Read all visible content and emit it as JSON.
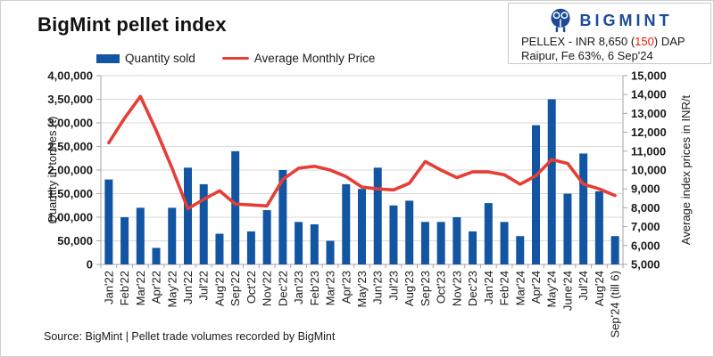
{
  "title": "BigMint pellet index",
  "info_box": {
    "logo_text": "BIGMINT",
    "line1_prefix": "PELLEX - INR 8,650 (",
    "line1_change": "150",
    "line1_suffix": ") DAP",
    "line2": "Raipur, Fe 63%, 6 Sep'24"
  },
  "legend": [
    {
      "label": "Quantity sold",
      "type": "bar"
    },
    {
      "label": "Average Monthly Price",
      "type": "line"
    }
  ],
  "source": "Source: BigMint | Pellet trade volumes recorded by BigMint",
  "colors": {
    "bar": "#1155a3",
    "line": "#e63e36",
    "logo_blue": "#1b4b99",
    "change_red": "#f41807",
    "grid": "#d9d9d9",
    "axis": "#a6a6a6"
  },
  "chart_data": {
    "type": "bar",
    "title": "BigMint pellet index",
    "categories": [
      "Jan'22",
      "Feb'22",
      "Mar'22",
      "Apr'22",
      "May'22",
      "Jun'22",
      "Jul'22",
      "Aug'22",
      "Sep'22",
      "Oct'22",
      "Nov'22",
      "Dec'22",
      "Jan'23",
      "Feb'23",
      "Mar'23",
      "Apr'23",
      "May'23",
      "Jun'23",
      "Jul'23",
      "Aug'23",
      "Sep'23",
      "Oct'23",
      "Nov'23",
      "Dec'23",
      "Jan'24",
      "Feb'24",
      "Mar'24",
      "Apr'24",
      "May'24",
      "June'24",
      "Jul'24",
      "Aug'24",
      "Sep'24 (till 6)"
    ],
    "series": [
      {
        "name": "Quantity sold",
        "type": "bar",
        "axis": "left",
        "values": [
          180000,
          100000,
          120000,
          35000,
          120000,
          205000,
          170000,
          65000,
          240000,
          70000,
          115000,
          200000,
          90000,
          85000,
          50000,
          170000,
          160000,
          205000,
          125000,
          135000,
          90000,
          90000,
          100000,
          70000,
          130000,
          90000,
          60000,
          295000,
          350000,
          150000,
          235000,
          155000,
          60000
        ]
      },
      {
        "name": "Average Monthly Price",
        "type": "line",
        "axis": "right",
        "values": [
          11450,
          12750,
          13900,
          12100,
          10100,
          7950,
          8450,
          8900,
          8200,
          8150,
          8100,
          9500,
          10100,
          10200,
          10000,
          9650,
          9100,
          9000,
          8950,
          9300,
          10450,
          10000,
          9600,
          9900,
          9900,
          9750,
          9250,
          9700,
          10550,
          10350,
          9250,
          9000,
          8650
        ]
      }
    ],
    "left_axis": {
      "label": "Quantity in tonnes (t)",
      "min": 0,
      "max": 400000,
      "step": 50000,
      "tick_labels": [
        "4,00,000",
        "3,50,000",
        "3,00,000",
        "2,50,000",
        "2,00,000",
        "1,50,000",
        "1,00,000",
        "50,000",
        "0"
      ]
    },
    "right_axis": {
      "label": "Average index prices in INR/t",
      "min": 5000,
      "max": 15000,
      "step": 1000,
      "tick_labels": [
        "15,000",
        "14,000",
        "13,000",
        "12,000",
        "11,000",
        "10,000",
        "9,000",
        "8,000",
        "7,000",
        "6,000",
        "5,000"
      ]
    },
    "grid": true,
    "legend_position": "top"
  }
}
